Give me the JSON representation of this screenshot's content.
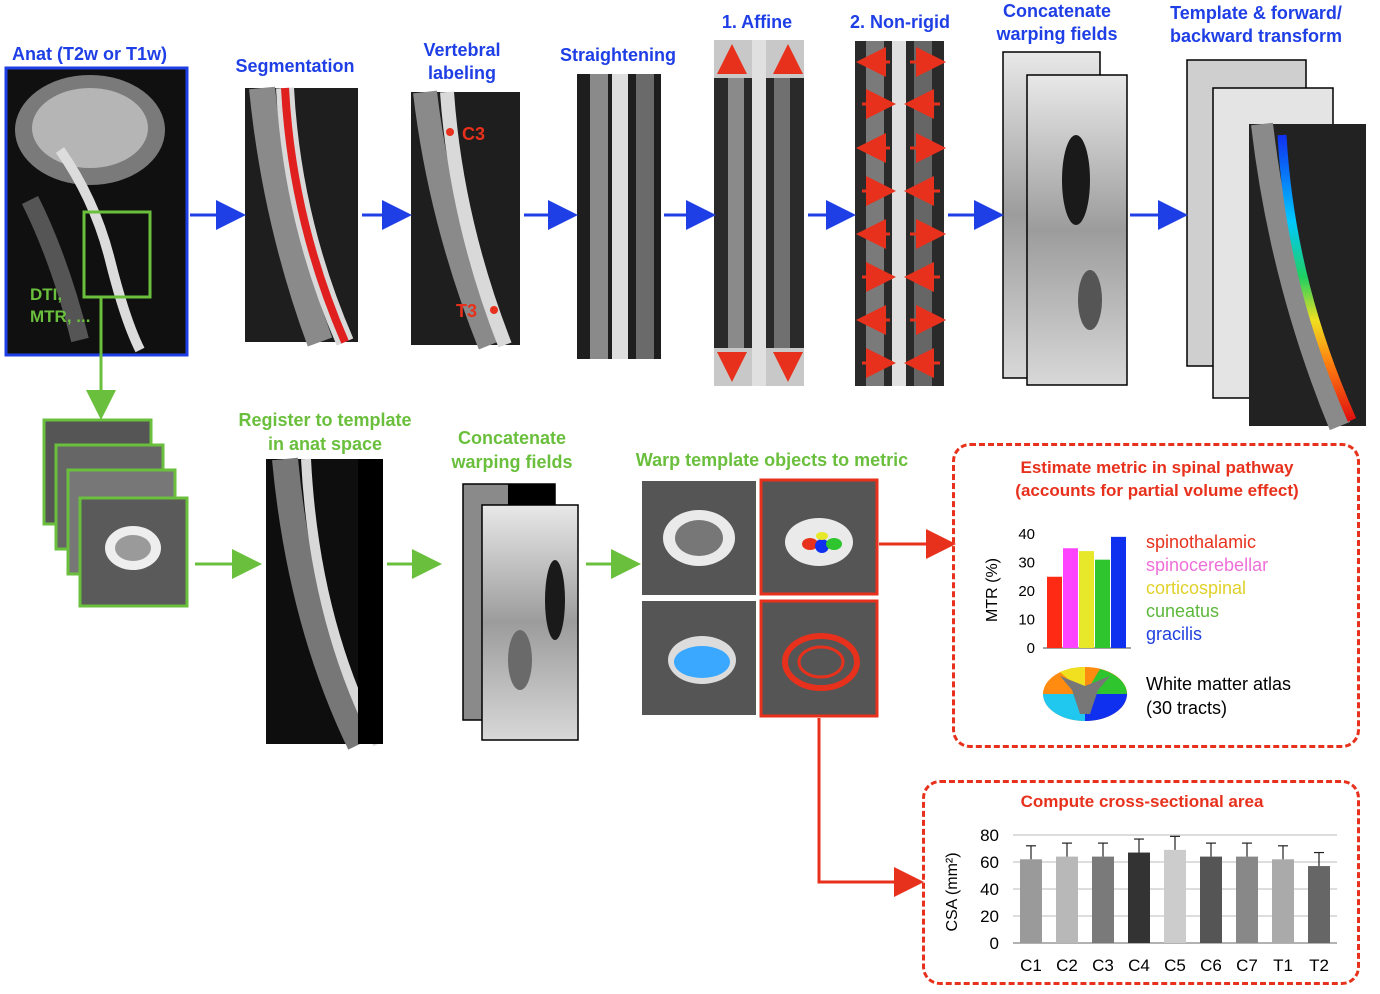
{
  "top_row": {
    "anat_title": "Anat (T2w or T1w)",
    "anat_overlay": [
      "DTI,",
      "MTR, ..."
    ],
    "steps": [
      {
        "id": "segmentation",
        "label": [
          "Segmentation"
        ]
      },
      {
        "id": "vertebral",
        "label": [
          "Vertebral",
          "labeling"
        ],
        "markers": [
          "C3",
          "T3"
        ]
      },
      {
        "id": "straightening",
        "label": [
          "Straightening"
        ]
      },
      {
        "id": "affine",
        "label": [
          "1. Affine"
        ]
      },
      {
        "id": "nonrigid",
        "label": [
          "2. Non-rigid"
        ]
      },
      {
        "id": "concatenate",
        "label": [
          "Concatenate",
          "warping fields"
        ]
      },
      {
        "id": "template",
        "label": [
          "Template & forward/",
          "backward transform"
        ]
      }
    ]
  },
  "bottom_row": {
    "register_label": [
      "Register to template",
      "in anat space"
    ],
    "concat_label": [
      "Concatenate",
      "warping fields"
    ],
    "warp_label": "Warp template objects to metric"
  },
  "metric_box": {
    "title": [
      "Estimate metric in spinal pathway",
      "(accounts for partial volume effect)"
    ],
    "atlas_label": [
      "White matter atlas",
      "(30 tracts)"
    ]
  },
  "csa_box": {
    "title": "Compute cross-sectional area"
  },
  "colors": {
    "blue": "#1f3fe6",
    "green": "#6abf3c",
    "red": "#e8311c"
  },
  "chart_data": [
    {
      "type": "bar",
      "ylabel": "MTR (%)",
      "ylim": [
        0,
        40
      ],
      "yticks": [
        0,
        10,
        20,
        30,
        40
      ],
      "categories": [
        "spinothalamic",
        "spinocerebellar",
        "corticospinal",
        "cuneatus",
        "gracilis"
      ],
      "values": [
        25,
        35,
        34,
        31,
        39
      ],
      "colors": [
        "#ff2a14",
        "#ff44ff",
        "#e8e82a",
        "#2ec52e",
        "#1030f0"
      ],
      "legend": [
        "spinothalamic",
        "spinocerebellar",
        "corticospinal",
        "cuneatus",
        "gracilis"
      ],
      "legend_colors": [
        "#e8311c",
        "#ef6fd8",
        "#e0d22a",
        "#5cb83a",
        "#2140e0"
      ]
    },
    {
      "type": "bar",
      "ylabel": "CSA (mm²)",
      "ylim": [
        0,
        80
      ],
      "yticks": [
        0,
        20,
        40,
        60,
        80
      ],
      "categories": [
        "C1",
        "C2",
        "C3",
        "C4",
        "C5",
        "C6",
        "C7",
        "T1",
        "T2"
      ],
      "values": [
        62,
        64,
        64,
        67,
        69,
        64,
        64,
        62,
        57
      ],
      "errors": [
        10,
        10,
        10,
        10,
        10,
        10,
        10,
        10,
        10
      ],
      "colors": [
        "#9a9a9a",
        "#b8b8b8",
        "#7a7a7a",
        "#333333",
        "#cccccc",
        "#555555",
        "#888888",
        "#aaaaaa",
        "#666666"
      ]
    }
  ]
}
